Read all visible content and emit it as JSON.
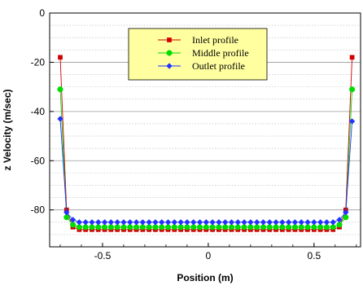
{
  "chart_data": {
    "type": "line",
    "xlabel": "Position (m)",
    "ylabel": "z Velocity (m/sec)",
    "xlim": [
      -0.75,
      0.72
    ],
    "ylim": [
      -95,
      0
    ],
    "x_ticks": [
      -0.5,
      0,
      0.5
    ],
    "x_tick_labels": [
      "-0.5",
      "0",
      "0.5"
    ],
    "y_ticks": [
      0,
      -20,
      -40,
      -60,
      -80
    ],
    "y_tick_labels": [
      "0",
      "-20",
      "-40",
      "-60",
      "-80"
    ],
    "grid": "horizontal dotted minor, solid major",
    "legend": {
      "placement": "top-center",
      "background": "#ffffa0"
    },
    "x": [
      -0.7,
      -0.67,
      -0.64,
      -0.61,
      -0.58,
      -0.55,
      -0.52,
      -0.49,
      -0.46,
      -0.43,
      -0.4,
      -0.37,
      -0.34,
      -0.31,
      -0.28,
      -0.25,
      -0.22,
      -0.19,
      -0.16,
      -0.13,
      -0.1,
      -0.07,
      -0.04,
      -0.01,
      0.02,
      0.05,
      0.08,
      0.11,
      0.14,
      0.17,
      0.2,
      0.23,
      0.26,
      0.29,
      0.32,
      0.35,
      0.38,
      0.41,
      0.44,
      0.47,
      0.5,
      0.53,
      0.56,
      0.59,
      0.62,
      0.65,
      0.68
    ],
    "series": [
      {
        "name": "Inlet profile",
        "color": "#d00000",
        "marker": "square",
        "values": [
          -18,
          -80,
          -87,
          -88,
          -88,
          -88,
          -88,
          -88,
          -88,
          -88,
          -88,
          -88,
          -88,
          -88,
          -88,
          -88,
          -88,
          -88,
          -88,
          -88,
          -88,
          -88,
          -88,
          -88,
          -88,
          -88,
          -88,
          -88,
          -88,
          -88,
          -88,
          -88,
          -88,
          -88,
          -88,
          -88,
          -88,
          -88,
          -88,
          -88,
          -88,
          -88,
          -88,
          -88,
          -87,
          -80,
          -18
        ]
      },
      {
        "name": "Middle profile",
        "color": "#00dd00",
        "marker": "circle",
        "values": [
          -31,
          -83,
          -86,
          -87,
          -87,
          -87,
          -87,
          -87,
          -87,
          -87,
          -87,
          -87,
          -87,
          -87,
          -87,
          -87,
          -87,
          -87,
          -87,
          -87,
          -87,
          -87,
          -87,
          -87,
          -87,
          -87,
          -87,
          -87,
          -87,
          -87,
          -87,
          -87,
          -87,
          -87,
          -87,
          -87,
          -87,
          -87,
          -87,
          -87,
          -87,
          -87,
          -87,
          -87,
          -86,
          -83,
          -31
        ]
      },
      {
        "name": "Outlet profile",
        "color": "#2233ff",
        "marker": "diamond",
        "values": [
          -43,
          -81,
          -84,
          -85,
          -85,
          -85,
          -85,
          -85,
          -85,
          -85,
          -85,
          -85,
          -85,
          -85,
          -85,
          -85,
          -85,
          -85,
          -85,
          -85,
          -85,
          -85,
          -85,
          -85,
          -85,
          -85,
          -85,
          -85,
          -85,
          -85,
          -85,
          -85,
          -85,
          -85,
          -85,
          -85,
          -85,
          -85,
          -85,
          -85,
          -85,
          -85,
          -85,
          -85,
          -84,
          -81,
          -44
        ]
      }
    ]
  }
}
